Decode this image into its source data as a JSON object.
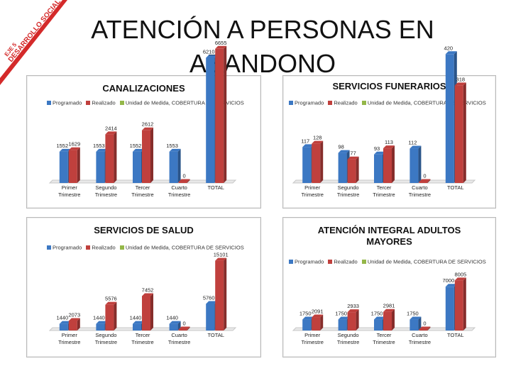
{
  "slide": {
    "title": "ATENCIÓN A PERSONAS EN ABANDONO",
    "badge": {
      "line1": "EJE 5",
      "line2": "DESARROLLO SOCIAL"
    }
  },
  "colors": {
    "programado": "#3c78c3",
    "realizado": "#c0403d",
    "unidad": "#94b749",
    "badge": "#d42a2a"
  },
  "legend": {
    "programado": "Programado",
    "realizado": "Realizado",
    "unidad": "Unidad de Medida, COBERTURA DE SERVICIOS"
  },
  "chart_data": [
    {
      "type": "bar",
      "title": "CANALIZACIONES",
      "categories": [
        "Primer Trimestre",
        "Segundo Trimestre",
        "Tercer Trimestre",
        "Cuarto Trimestre",
        "TOTAL"
      ],
      "series": [
        {
          "name": "Programado",
          "values": [
            1552,
            1553,
            1552,
            1553,
            6210
          ]
        },
        {
          "name": "Realizado",
          "values": [
            1629,
            2414,
            2612,
            0,
            6655
          ]
        }
      ],
      "ylim": [
        0,
        7000
      ]
    },
    {
      "type": "bar",
      "title": "SERVICIOS FUNERARIOS",
      "categories": [
        "Primer Trimestre",
        "Segundo Trimestre",
        "Tercer Trimestre",
        "Cuarto Trimestre",
        "TOTAL"
      ],
      "series": [
        {
          "name": "Programado",
          "values": [
            117,
            98,
            93,
            112,
            420
          ]
        },
        {
          "name": "Realizado",
          "values": [
            128,
            77,
            113,
            0,
            318
          ]
        }
      ],
      "ylim": [
        0,
        460
      ]
    },
    {
      "type": "bar",
      "title": "SERVICIOS DE SALUD",
      "categories": [
        "Primer Trimestre",
        "Segundo Trimestre",
        "Tercer Trimestre",
        "Cuarto Trimestre",
        "TOTAL"
      ],
      "series": [
        {
          "name": "Programado",
          "values": [
            1440,
            1440,
            1440,
            1440,
            5760
          ]
        },
        {
          "name": "Realizado",
          "values": [
            2073,
            5576,
            7452,
            0,
            15101
          ]
        }
      ],
      "ylim": [
        0,
        15500
      ]
    },
    {
      "type": "bar",
      "title": "ATENCIÓN INTEGRAL ADULTOS MAYORES",
      "categories": [
        "Primer Trimestre",
        "Segundo Trimestre",
        "Tercer Trimestre",
        "Cuarto Trimestre",
        "TOTAL"
      ],
      "series": [
        {
          "name": "Programado",
          "values": [
            1750,
            1750,
            1750,
            1750,
            7000
          ]
        },
        {
          "name": "Realizado",
          "values": [
            2091,
            2933,
            2981,
            0,
            8005
          ]
        }
      ],
      "ylim": [
        0,
        8500
      ]
    }
  ]
}
